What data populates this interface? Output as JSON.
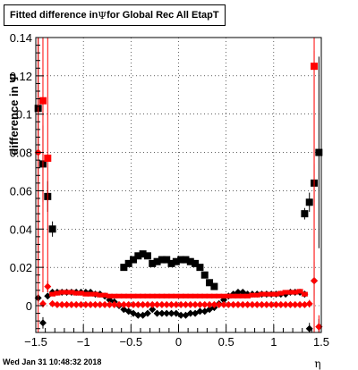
{
  "title": {
    "prefix": "Fitted difference in ",
    "symbol": "Ψ",
    "suffix": " for Global Rec All EtapT"
  },
  "timestamp": "Wed Jan 31 10:48:32 2018",
  "chart_data": {
    "type": "scatter",
    "title": "Fitted difference in Ψ for Global Rec All EtapT",
    "xlabel": "η",
    "ylabel": "difference in Ψ",
    "xlim": [
      -1.5,
      1.5
    ],
    "ylim": [
      -0.014,
      0.14
    ],
    "xticks": [
      -1.5,
      -1,
      -0.5,
      0,
      0.5,
      1,
      1.5
    ],
    "xtick_labels": [
      "−1.5",
      "−1",
      "−0.5",
      "0",
      "0.5",
      "1",
      "1.5"
    ],
    "yticks": [
      0,
      0.02,
      0.04,
      0.06,
      0.08,
      0.1,
      0.12,
      0.14
    ],
    "ytick_labels": [
      "0",
      "0.02",
      "0.04",
      "0.06",
      "0.08",
      "0.1",
      "0.12",
      "0.14"
    ],
    "grid": true,
    "series": [
      {
        "marker": "square",
        "color": "#000000",
        "x": [
          -1.475,
          -1.425,
          -1.375,
          -1.325,
          -0.575,
          -0.525,
          -0.475,
          -0.425,
          -0.375,
          -0.325,
          -0.275,
          -0.225,
          -0.175,
          -0.125,
          -0.075,
          -0.025,
          0.025,
          0.075,
          0.125,
          0.175,
          0.225,
          0.275,
          0.325,
          0.375,
          1.325,
          1.375,
          1.425,
          1.475
        ],
        "y": [
          0.103,
          0.074,
          0.057,
          0.04,
          0.02,
          0.022,
          0.024,
          0.026,
          0.027,
          0.026,
          0.022,
          0.023,
          0.024,
          0.024,
          0.022,
          0.023,
          0.024,
          0.024,
          0.023,
          0.022,
          0.02,
          0.016,
          0.012,
          0.01,
          0.048,
          0.054,
          0.064,
          0.08
        ],
        "yerr": [
          0.09,
          0.02,
          0.008,
          0.004,
          0.001,
          0.001,
          0.001,
          0.001,
          0.001,
          0.001,
          0.001,
          0.001,
          0.001,
          0.001,
          0.001,
          0.001,
          0.001,
          0.001,
          0.001,
          0.001,
          0.001,
          0.001,
          0.001,
          0.001,
          0.003,
          0.005,
          0.01,
          0.05
        ]
      },
      {
        "marker": "square",
        "color": "#ff0000",
        "x": [
          -1.425,
          -1.375,
          1.425
        ],
        "y": [
          0.107,
          0.077,
          0.125
        ],
        "yerr": [
          0.1,
          0.07,
          0.12
        ]
      },
      {
        "marker": "diamond",
        "color": "#000000",
        "x": [
          -1.475,
          -1.425,
          -1.375,
          -1.325,
          -1.275,
          -1.225,
          -1.175,
          -1.125,
          -1.075,
          -1.025,
          -0.975,
          -0.925,
          -0.875,
          -0.825,
          -0.775,
          -0.725,
          -0.675,
          -0.625,
          -0.575,
          -0.525,
          -0.475,
          -0.425,
          -0.375,
          -0.325,
          -0.275,
          -0.225,
          -0.175,
          -0.125,
          -0.075,
          -0.025,
          0.025,
          0.075,
          0.125,
          0.175,
          0.225,
          0.275,
          0.325,
          0.375,
          0.425,
          0.475,
          0.525,
          0.575,
          0.625,
          0.675,
          0.725,
          0.775,
          0.825,
          0.875,
          0.925,
          0.975,
          1.025,
          1.075,
          1.125,
          1.175,
          1.225,
          1.275,
          1.325,
          1.375,
          1.425,
          1.475
        ],
        "y": [
          0.004,
          -0.009,
          0.005,
          0.007,
          0.007,
          0.007,
          0.007,
          0.007,
          0.007,
          0.007,
          0.007,
          0.007,
          0.006,
          0.006,
          0.005,
          0.003,
          0.002,
          0.0,
          -0.002,
          -0.003,
          -0.004,
          -0.005,
          -0.005,
          -0.004,
          -0.002,
          -0.004,
          -0.004,
          -0.004,
          -0.004,
          -0.004,
          -0.005,
          -0.005,
          -0.004,
          -0.004,
          -0.003,
          -0.003,
          -0.002,
          -0.001,
          0.001,
          0.003,
          0.005,
          0.006,
          0.007,
          0.007,
          0.006,
          0.006,
          0.006,
          0.006,
          0.006,
          0.006,
          0.006,
          0.006,
          0.006,
          0.007,
          0.007,
          0.007,
          0.006,
          -0.012,
          0.013,
          -0.011
        ],
        "yerr": [
          0.002,
          0.003,
          0.001,
          0.0005,
          0.0005,
          0.0005,
          0.0005,
          0.0005,
          0.0005,
          0.0005,
          0.0005,
          0.0005,
          0.0005,
          0.0005,
          0.0005,
          0.0005,
          0.0005,
          0.0005,
          0.0005,
          0.0005,
          0.0005,
          0.0005,
          0.0005,
          0.0005,
          0.0005,
          0.0005,
          0.0005,
          0.0005,
          0.0005,
          0.0005,
          0.0005,
          0.0005,
          0.0005,
          0.0005,
          0.0005,
          0.0005,
          0.0005,
          0.0005,
          0.0005,
          0.0005,
          0.0005,
          0.0005,
          0.0005,
          0.0005,
          0.0005,
          0.0005,
          0.0005,
          0.0005,
          0.0005,
          0.0005,
          0.0005,
          0.0005,
          0.0005,
          0.0005,
          0.0005,
          0.0005,
          0.0005,
          0.003,
          0.01,
          0.004
        ]
      },
      {
        "marker": "diamond",
        "color": "#ff0000",
        "x": [
          -1.475,
          -1.425,
          -1.375,
          -1.325,
          -1.275,
          -1.225,
          -1.175,
          -1.125,
          -1.075,
          -1.025,
          -0.975,
          -0.925,
          -0.875,
          -0.825,
          -0.775,
          -0.725,
          -0.675,
          -0.625,
          -0.575,
          -0.525,
          -0.475,
          -0.425,
          -0.375,
          -0.325,
          -0.275,
          -0.225,
          -0.175,
          -0.125,
          -0.075,
          -0.025,
          0.025,
          0.075,
          0.125,
          0.175,
          0.225,
          0.275,
          0.325,
          0.375,
          0.425,
          0.475,
          0.525,
          0.575,
          0.625,
          0.675,
          0.725,
          0.775,
          0.825,
          0.875,
          0.925,
          0.975,
          1.025,
          1.075,
          1.125,
          1.175,
          1.225,
          1.275,
          1.325,
          1.375,
          1.425,
          1.475
        ],
        "y": [
          0.08,
          0.001,
          0.01,
          0.001,
          0.0005,
          0.0005,
          0.0005,
          0.0005,
          0.0005,
          0.0005,
          0.0005,
          0.0005,
          0.0005,
          0.0005,
          0.0005,
          0.0005,
          0.0005,
          0.0005,
          0.0005,
          0.0005,
          0.0005,
          0.0005,
          0.0005,
          0.0005,
          0.0005,
          0.0005,
          0.0005,
          0.0005,
          0.0005,
          0.0005,
          0.0005,
          0.0005,
          0.0005,
          0.0005,
          0.0005,
          0.0005,
          0.0005,
          0.0005,
          0.0005,
          0.0005,
          0.0005,
          0.0005,
          0.0005,
          0.0005,
          0.0005,
          0.0005,
          0.0005,
          0.0005,
          0.0005,
          0.0005,
          0.0005,
          0.0005,
          0.0005,
          0.0005,
          0.0005,
          0.0005,
          0.0005,
          0.001,
          0.013,
          -0.011
        ],
        "yerr": [
          0.095,
          0.002,
          0.003,
          0.0005,
          0.0005,
          0.0005,
          0.0005,
          0.0005,
          0.0005,
          0.0005,
          0.0005,
          0.0005,
          0.0005,
          0.0005,
          0.0005,
          0.0005,
          0.0005,
          0.0005,
          0.0005,
          0.0005,
          0.0005,
          0.0005,
          0.0005,
          0.0005,
          0.0005,
          0.0005,
          0.0005,
          0.0005,
          0.0005,
          0.0005,
          0.0005,
          0.0005,
          0.0005,
          0.0005,
          0.0005,
          0.0005,
          0.0005,
          0.0005,
          0.0005,
          0.0005,
          0.0005,
          0.0005,
          0.0005,
          0.0005,
          0.0005,
          0.0005,
          0.0005,
          0.0005,
          0.0005,
          0.0005,
          0.0005,
          0.0005,
          0.0005,
          0.0005,
          0.0005,
          0.0005,
          0.0005,
          0.002,
          0.12,
          0.006
        ]
      },
      {
        "marker": "thick-band",
        "color": "#ff0000",
        "x": [
          -1.325,
          -1.275,
          -1.225,
          -1.175,
          -1.125,
          -1.075,
          -1.025,
          -0.975,
          -0.925,
          -0.875,
          -0.825,
          -0.775,
          -0.725,
          -0.675,
          -0.625,
          -0.575,
          -0.525,
          -0.475,
          -0.425,
          -0.375,
          -0.325,
          -0.275,
          -0.225,
          -0.175,
          -0.125,
          -0.075,
          -0.025,
          0.025,
          0.075,
          0.125,
          0.175,
          0.225,
          0.275,
          0.325,
          0.375,
          0.425,
          0.475,
          0.525,
          0.575,
          0.625,
          0.675,
          0.725,
          0.775,
          0.825,
          0.875,
          0.925,
          0.975,
          1.025,
          1.075,
          1.125,
          1.175,
          1.225,
          1.275,
          1.325
        ],
        "y": [
          0.006,
          0.0065,
          0.007,
          0.007,
          0.007,
          0.0065,
          0.0065,
          0.006,
          0.006,
          0.006,
          0.0055,
          0.0055,
          0.005,
          0.005,
          0.005,
          0.005,
          0.005,
          0.005,
          0.005,
          0.005,
          0.005,
          0.005,
          0.005,
          0.005,
          0.005,
          0.005,
          0.005,
          0.005,
          0.005,
          0.005,
          0.005,
          0.005,
          0.005,
          0.005,
          0.005,
          0.005,
          0.005,
          0.005,
          0.005,
          0.005,
          0.005,
          0.005,
          0.0055,
          0.0055,
          0.006,
          0.006,
          0.006,
          0.006,
          0.0065,
          0.007,
          0.007,
          0.007,
          0.0075,
          0.006
        ],
        "yerr": [
          0.0012,
          0.0012,
          0.0012,
          0.0012,
          0.0012,
          0.0012,
          0.0012,
          0.0012,
          0.0012,
          0.0012,
          0.0012,
          0.0012,
          0.0012,
          0.0012,
          0.0012,
          0.0012,
          0.0012,
          0.0012,
          0.0012,
          0.0012,
          0.0012,
          0.0012,
          0.0012,
          0.0012,
          0.0012,
          0.0012,
          0.0012,
          0.0012,
          0.0012,
          0.0012,
          0.0012,
          0.0012,
          0.0012,
          0.0012,
          0.0012,
          0.0012,
          0.0012,
          0.0012,
          0.0012,
          0.0012,
          0.0012,
          0.0012,
          0.0012,
          0.0012,
          0.0012,
          0.0012,
          0.0012,
          0.0012,
          0.0012,
          0.0012,
          0.0012,
          0.0012,
          0.0012,
          0.0012
        ]
      }
    ]
  }
}
